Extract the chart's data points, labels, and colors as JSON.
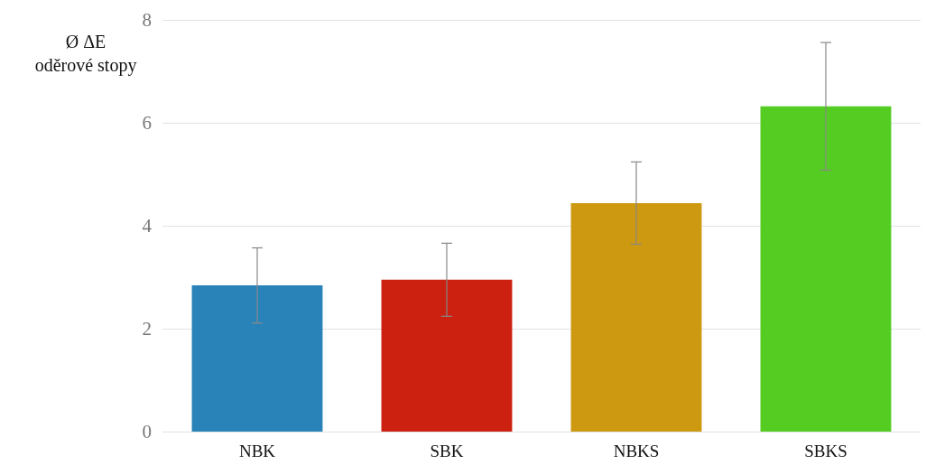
{
  "chart_data": {
    "type": "bar",
    "ylabel": "Ø ΔE\noděrové stopy",
    "categories": [
      "NBK",
      "SBK",
      "NBKS",
      "SBKS"
    ],
    "values": [
      2.84,
      2.95,
      4.44,
      6.32
    ],
    "errors": [
      0.73,
      0.71,
      0.8,
      1.24
    ],
    "colors": [
      "#2a83b8",
      "#cc2010",
      "#cc9910",
      "#55cc22"
    ],
    "ylim": [
      0,
      8
    ],
    "yticks": [
      0,
      2,
      4,
      6,
      8
    ],
    "grid": "y"
  }
}
